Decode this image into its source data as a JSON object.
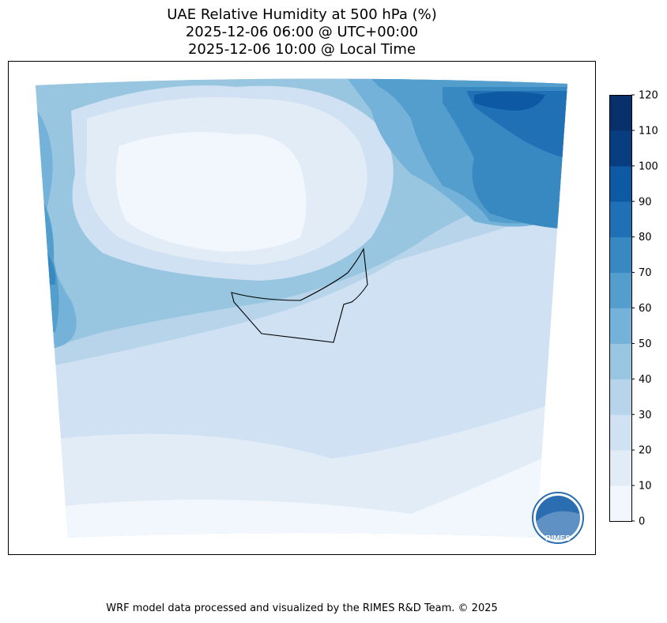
{
  "title": {
    "line1": "UAE Relative Humidity at 500 hPa (%)",
    "line2": "2025-12-06 06:00 @ UTC+00:00",
    "line3": "2025-12-06 10:00 @ Local Time"
  },
  "colorbar": {
    "levels": [
      0,
      10,
      20,
      30,
      40,
      50,
      60,
      70,
      80,
      90,
      100,
      110,
      120
    ],
    "tick_labels": [
      "0",
      "10",
      "20",
      "30",
      "40",
      "50",
      "60",
      "70",
      "80",
      "90",
      "100",
      "110",
      "120"
    ],
    "colors": [
      "#f1f7fd",
      "#e1ecf7",
      "#cfe1f2",
      "#b7d4ea",
      "#98c6e0",
      "#75b2d9",
      "#539ecd",
      "#3888c1",
      "#2070b5",
      "#0e59a3",
      "#083d7f",
      "#08306b"
    ]
  },
  "logo": {
    "text": "RIMES"
  },
  "footer": "WRF model data processed and visualized by the RIMES R&D Team. © 2025"
}
